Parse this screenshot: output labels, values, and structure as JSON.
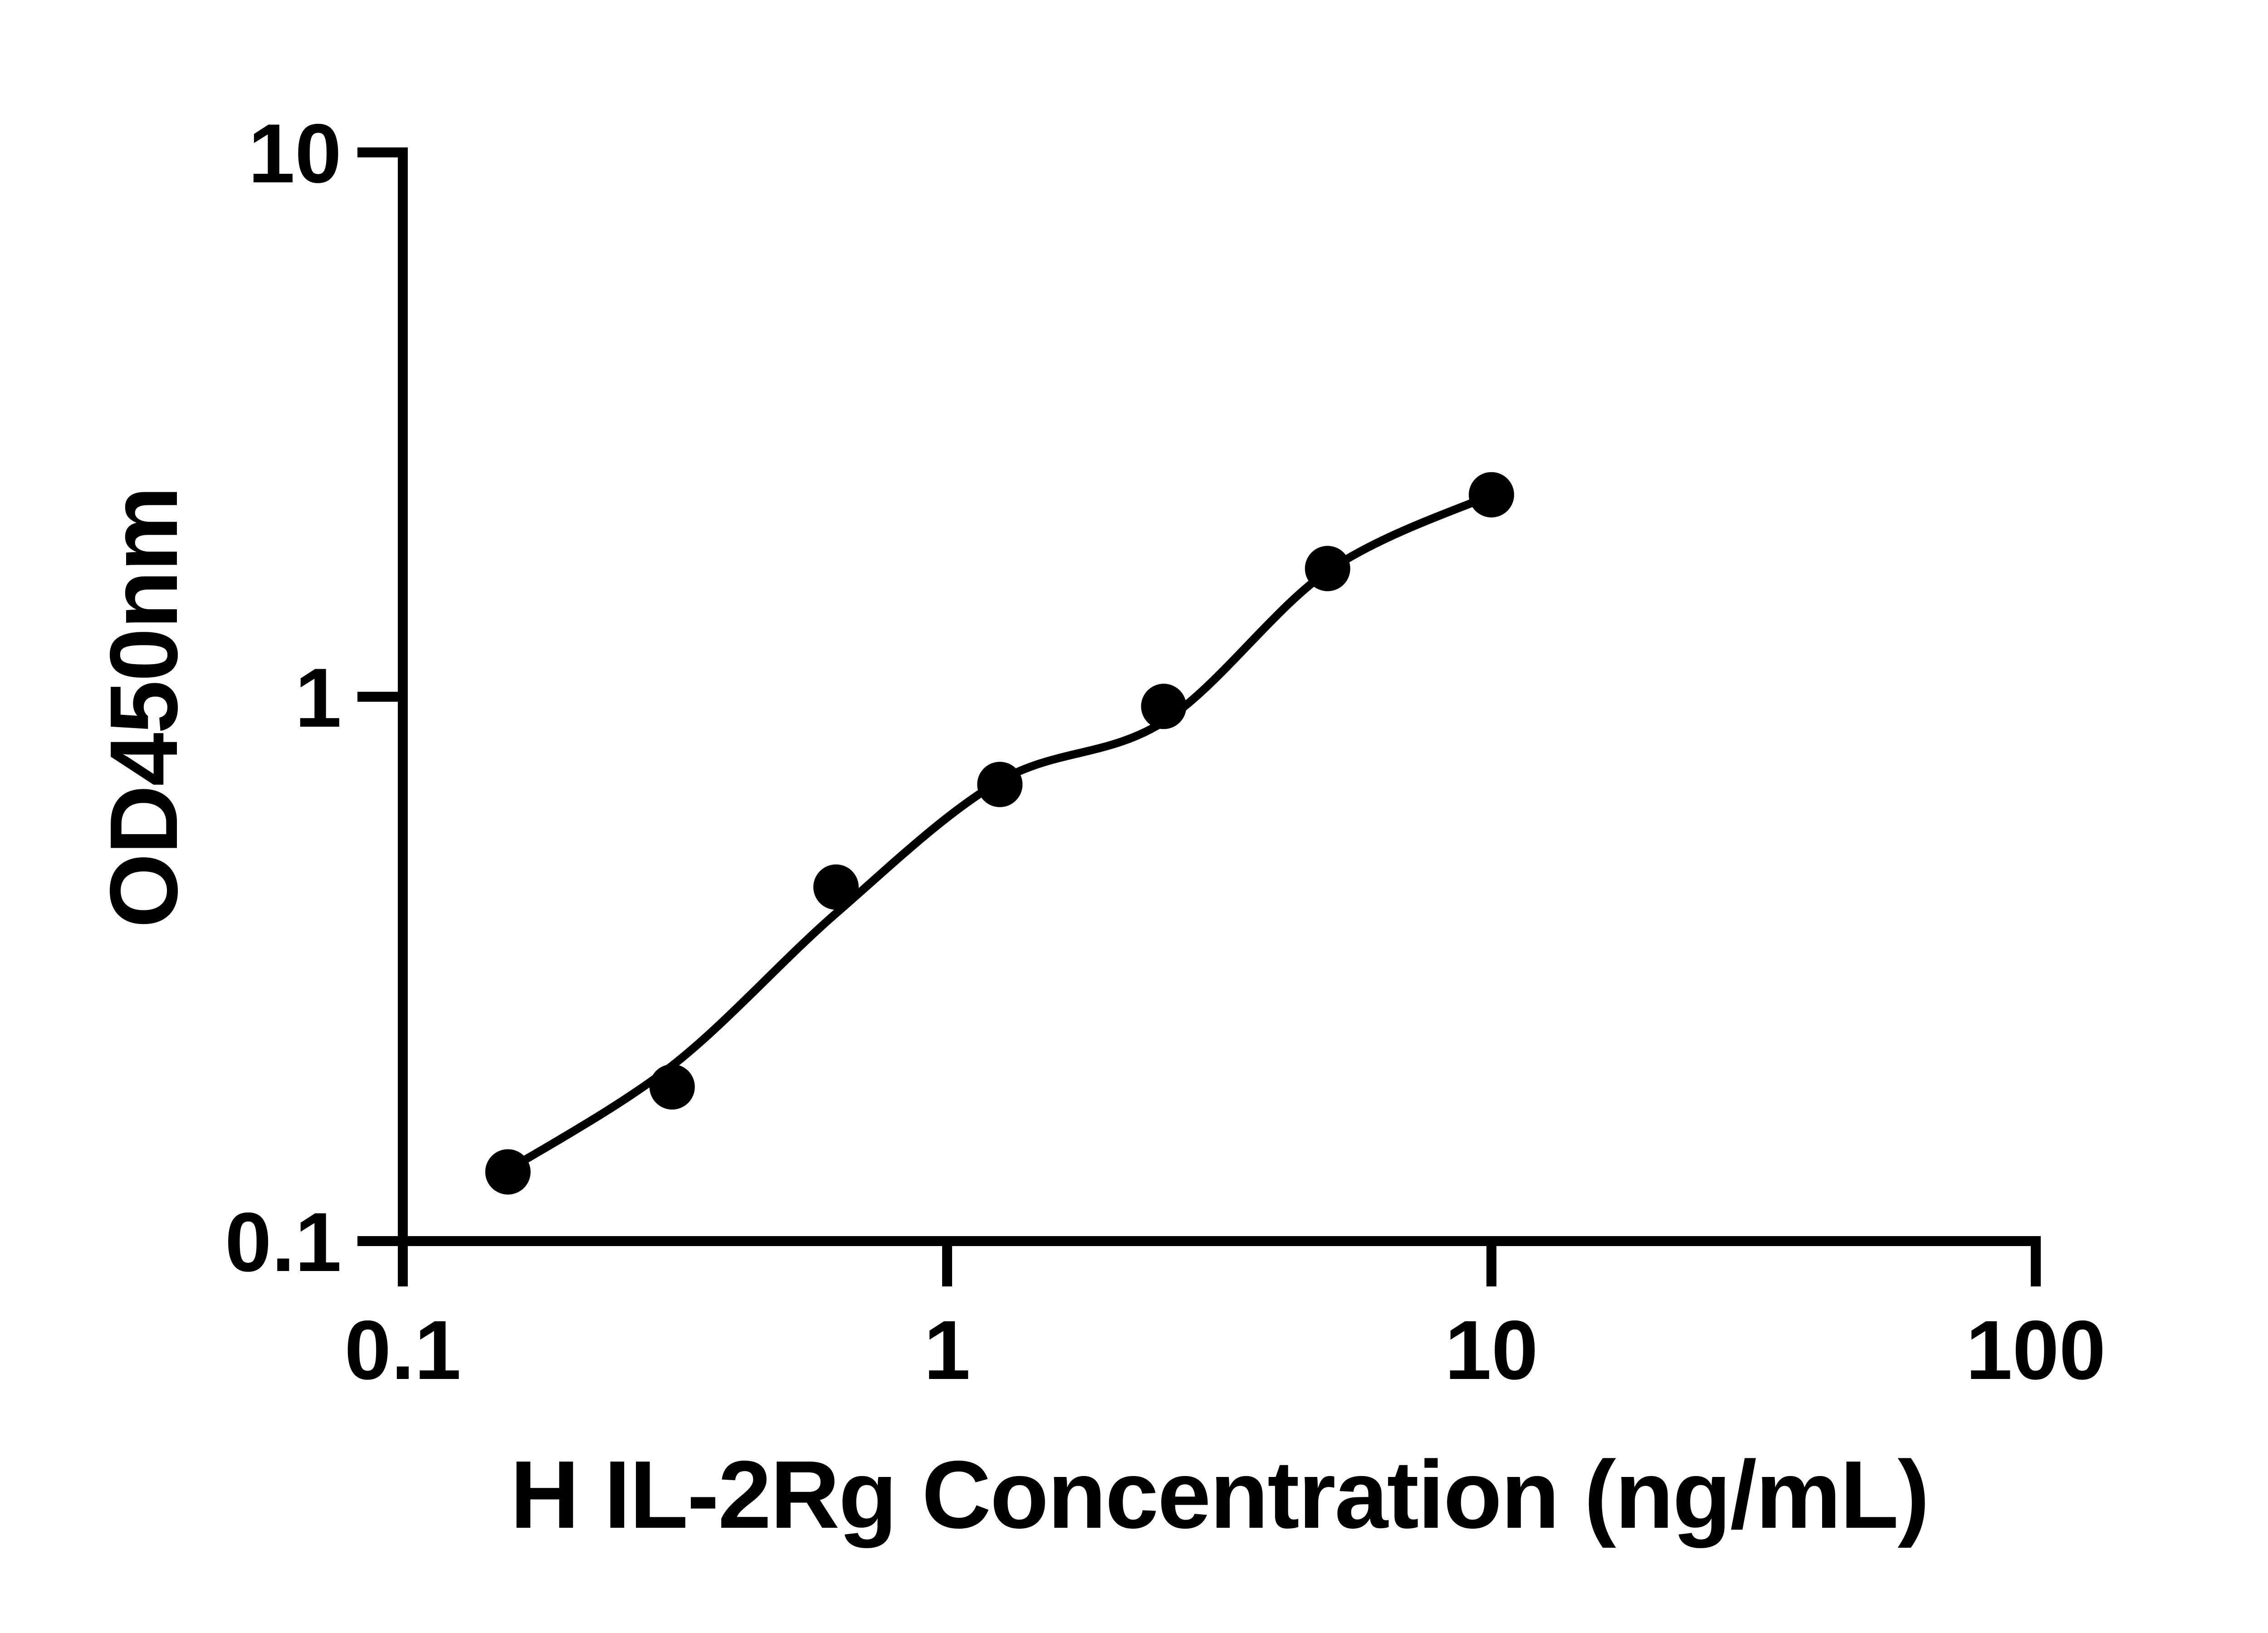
{
  "page": {
    "background_color": "#ffffff",
    "ink_color": "#000000"
  },
  "chart_data": {
    "type": "scatter",
    "title": "",
    "xlabel": "H IL-2Rg Concentration (ng/mL)",
    "ylabel": "OD450nm",
    "x_scale": "log",
    "y_scale": "log",
    "xlim": [
      0.1,
      100
    ],
    "ylim": [
      0.1,
      10
    ],
    "x_ticks": [
      0.1,
      1,
      10,
      100
    ],
    "x_tick_labels": [
      "0.1",
      "1",
      "10",
      "100"
    ],
    "y_ticks": [
      0.1,
      1,
      10
    ],
    "y_tick_labels": [
      "0.1",
      "1",
      "10"
    ],
    "grid": false,
    "legend": null,
    "marker_color": "#000000",
    "curve_color": "#000000",
    "axis_color": "#000000",
    "points": [
      {
        "x": 0.156,
        "y": 0.134
      },
      {
        "x": 0.3125,
        "y": 0.192
      },
      {
        "x": 0.625,
        "y": 0.447
      },
      {
        "x": 1.25,
        "y": 0.69
      },
      {
        "x": 2.5,
        "y": 0.96
      },
      {
        "x": 5,
        "y": 1.72
      },
      {
        "x": 10,
        "y": 2.35
      }
    ],
    "fit_curve": [
      {
        "x": 0.156,
        "y": 0.135
      },
      {
        "x": 0.3125,
        "y": 0.21
      },
      {
        "x": 0.625,
        "y": 0.4
      },
      {
        "x": 1.25,
        "y": 0.7
      },
      {
        "x": 2.5,
        "y": 0.9
      },
      {
        "x": 5,
        "y": 1.7
      },
      {
        "x": 10,
        "y": 2.35
      }
    ]
  }
}
